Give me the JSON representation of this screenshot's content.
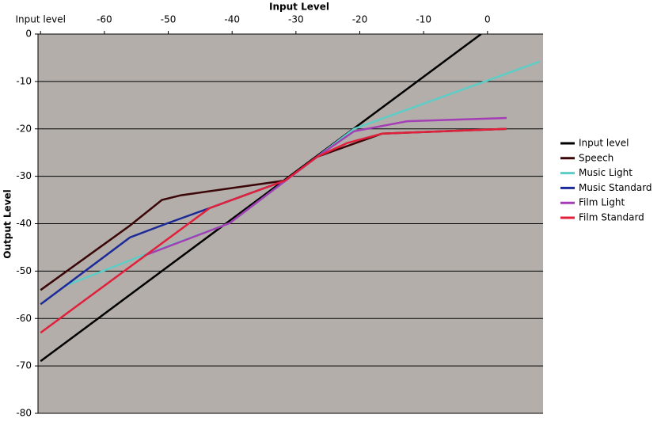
{
  "chart_data": {
    "type": "line",
    "title": "Input Level",
    "y_label": "Output Level",
    "xlim": [
      -70.4,
      8.7
    ],
    "ylim": [
      -80,
      0
    ],
    "xticks": [
      {
        "value": -70,
        "label": "Input level"
      },
      -60,
      -50,
      -40,
      -30,
      -20,
      -10,
      0
    ],
    "yticks": [
      0,
      -10,
      -20,
      -30,
      -40,
      -50,
      -60,
      -70,
      -80
    ],
    "grid": true,
    "legend": "right",
    "background": "#b3aeaa",
    "series": [
      {
        "name": "Input level",
        "color": "#000000",
        "x": [
          -70,
          -1
        ],
        "values": [
          -69,
          0
        ]
      },
      {
        "name": "Speech",
        "color": "#3a0608",
        "x": [
          -70,
          -56,
          -51,
          -48,
          -31.7,
          -26.7,
          -16.5,
          3
        ],
        "values": [
          -54,
          -40.4,
          -35,
          -34,
          -30.9,
          -25.9,
          -21,
          -20
        ]
      },
      {
        "name": "Music Light",
        "color": "#5ecdc6",
        "x": [
          -66,
          -54,
          -40.4,
          -26.7,
          -20.9,
          8.2
        ],
        "values": [
          -53,
          -46.7,
          -39.9,
          -25.9,
          -20,
          -5.8
        ]
      },
      {
        "name": "Music Standard",
        "color": "#1c2a98",
        "x": [
          -70,
          -56,
          -50.3,
          -43.5,
          -31.7,
          -26.7
        ],
        "values": [
          -57,
          -42.9,
          -40,
          -36.7,
          -30.9,
          -25.9
        ]
      },
      {
        "name": "Film Light",
        "color": "#a43eb4",
        "x": [
          -53.7,
          -40.4,
          -26.7,
          -20.9,
          -12.6,
          3
        ],
        "values": [
          -46.7,
          -39.9,
          -25.9,
          -20.5,
          -18.4,
          -17.7
        ]
      },
      {
        "name": "Film Standard",
        "color": "#e1203c",
        "x": [
          -70,
          -43.5,
          -31.7,
          -26.7,
          -22,
          -16.5,
          3
        ],
        "values": [
          -63,
          -36.7,
          -30.9,
          -25.9,
          -23,
          -21,
          -20
        ]
      }
    ]
  }
}
